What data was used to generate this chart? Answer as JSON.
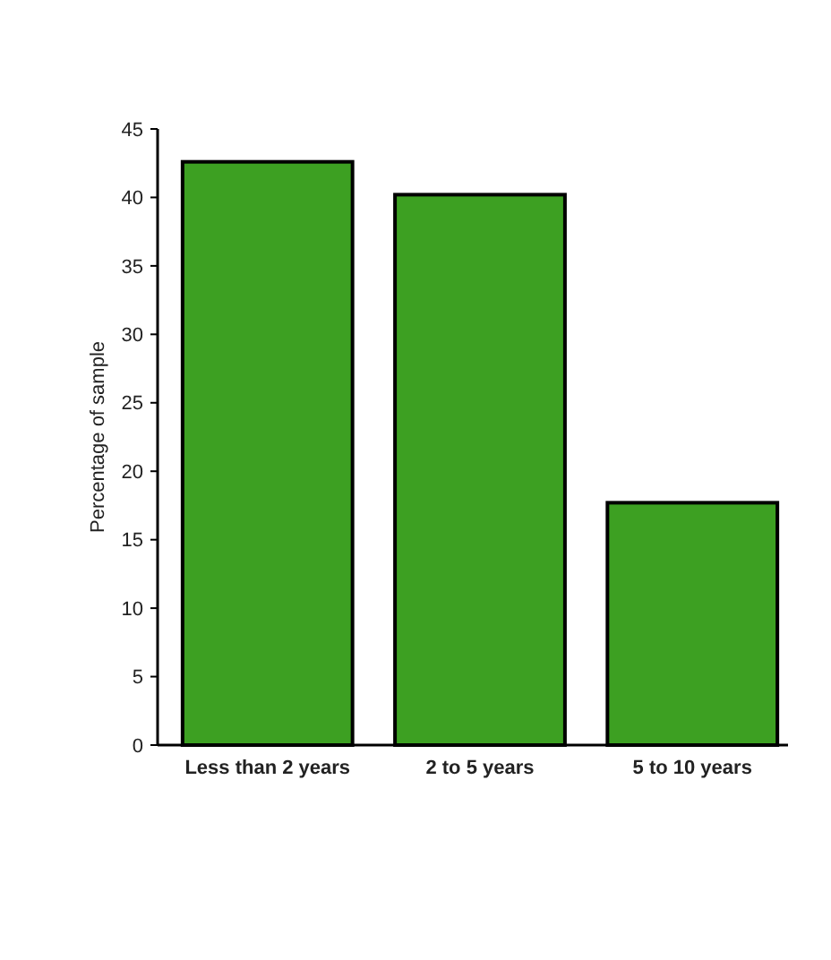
{
  "chart_data": {
    "type": "bar",
    "ylabel": "Percentage of sample",
    "categories": [
      "Less than 2 years",
      "2 to 5 years",
      "5 to 10 years"
    ],
    "values": [
      42.6,
      40.2,
      17.7
    ],
    "color": "#3da022",
    "ylim": [
      0,
      45
    ],
    "yticks": [
      0,
      5,
      10,
      15,
      20,
      25,
      30,
      35,
      40,
      45
    ],
    "grid": false
  }
}
